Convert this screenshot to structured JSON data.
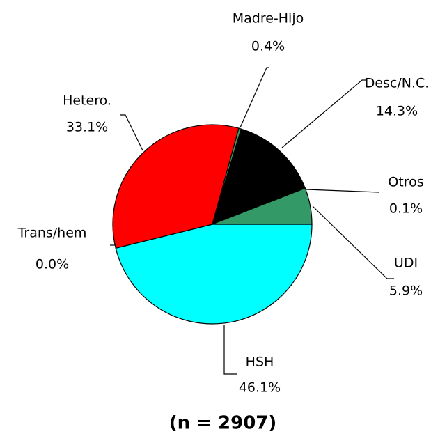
{
  "chart_data": {
    "type": "pie",
    "title": "(n = 2907)",
    "categories": [
      "HSH",
      "Trans/hem",
      "Hetero.",
      "Madre-Hijo",
      "Desc/N.C.",
      "Otros",
      "UDI"
    ],
    "values": [
      46.1,
      0.0,
      33.1,
      0.4,
      14.3,
      0.1,
      5.9
    ],
    "value_labels": [
      "46.1%",
      "0.0%",
      "33.1%",
      "0.4%",
      "14.3%",
      "0.1%",
      "5.9%"
    ],
    "colors": [
      "#00ffff",
      "#c0c0c0",
      "#ff0000",
      "#339966",
      "#000000",
      "#c0c0c0",
      "#339966"
    ]
  }
}
